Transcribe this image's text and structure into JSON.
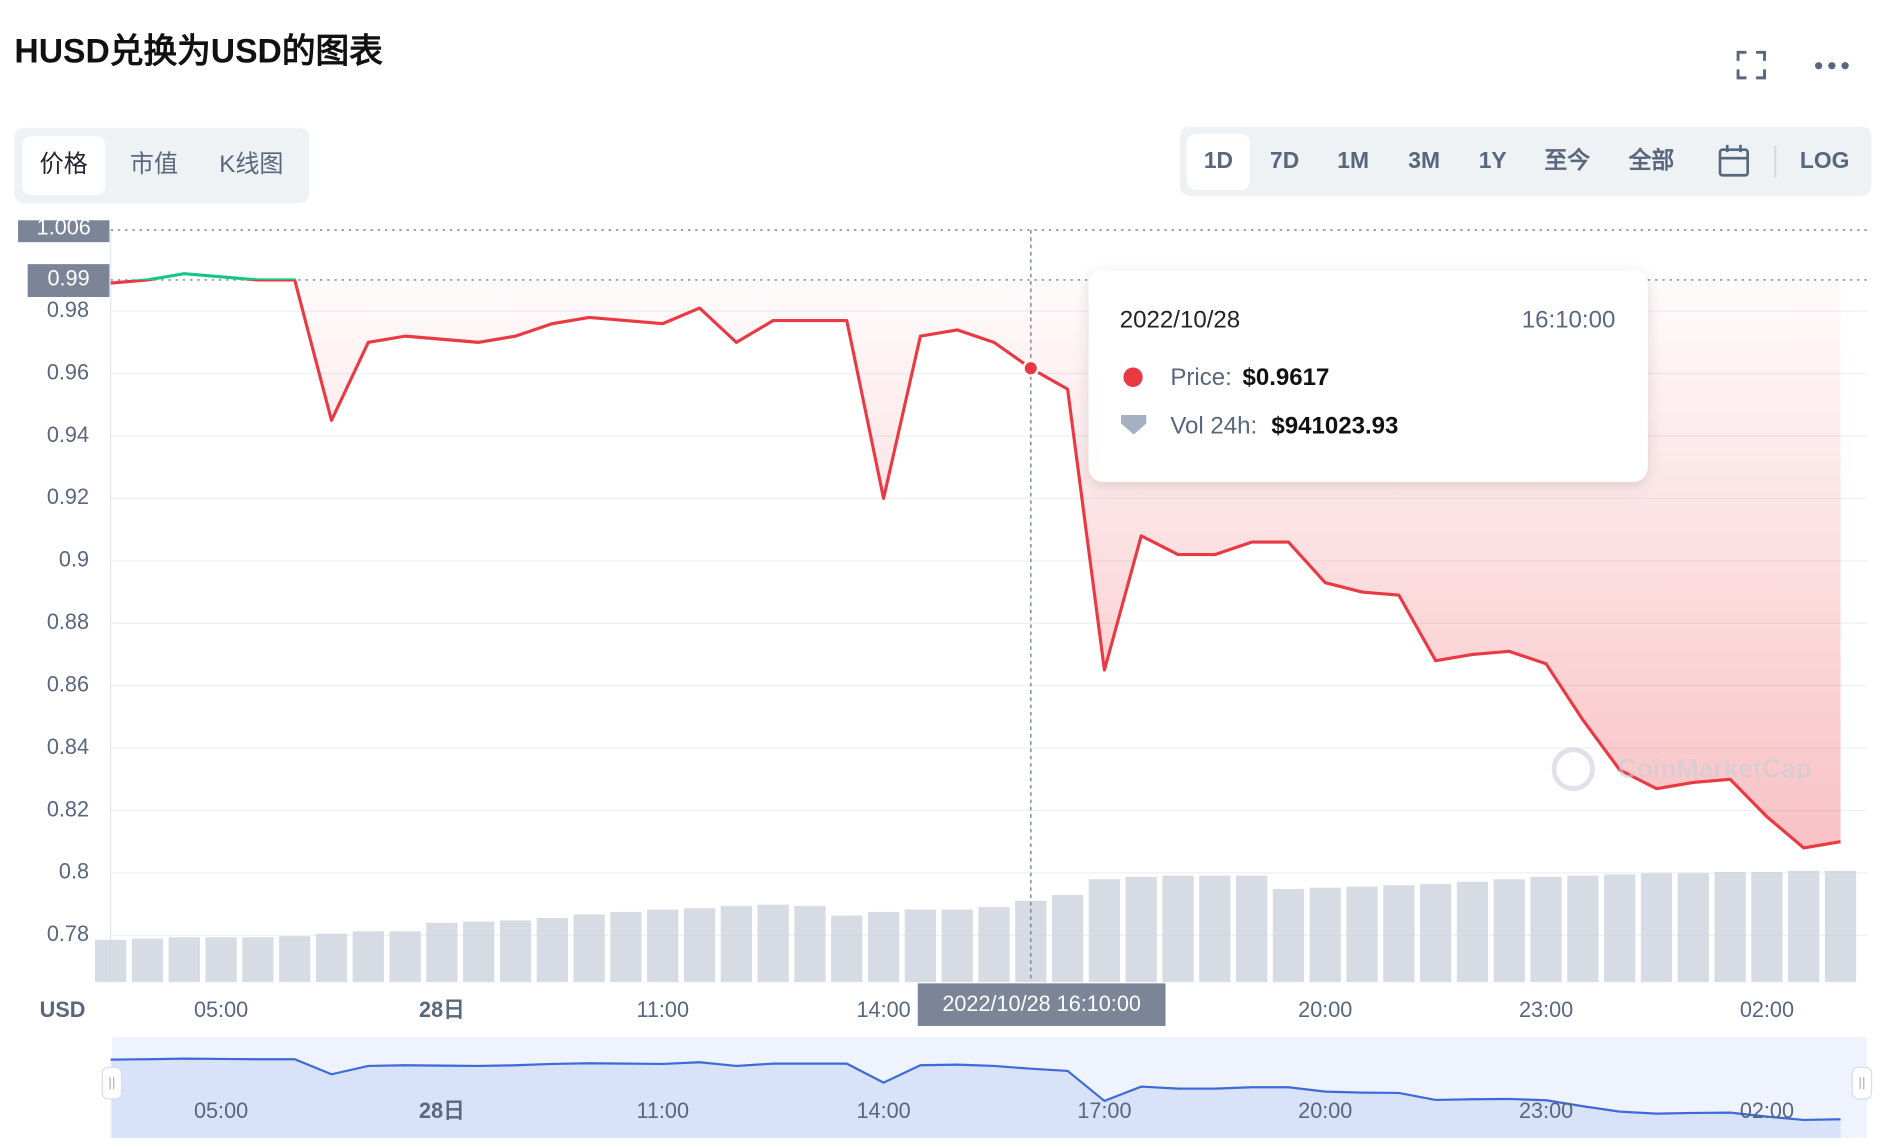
{
  "header": {
    "title": "HUSD兑换为USD的图表"
  },
  "tabs": {
    "items": [
      "价格",
      "市值",
      "K线图"
    ],
    "active": 0
  },
  "ranges": {
    "items": [
      "1D",
      "7D",
      "1M",
      "3M",
      "1Y",
      "至今",
      "全部"
    ],
    "active": 0,
    "log": "LOG"
  },
  "chart_data": {
    "type": "line",
    "categories": [
      null,
      null,
      null,
      "05:00",
      null,
      null,
      null,
      null,
      null,
      "28日",
      null,
      null,
      null,
      null,
      null,
      "11:00",
      null,
      null,
      null,
      null,
      null,
      "14:00",
      null,
      null,
      null,
      null,
      null,
      "17:00",
      null,
      null,
      null,
      null,
      null,
      "20:00",
      null,
      null,
      null,
      null,
      null,
      "23:00",
      null,
      null,
      null,
      null,
      null,
      "02:00",
      null,
      null
    ],
    "series": [
      {
        "color": "#ea3943",
        "up_color": "#16c784",
        "values": [
          0.989,
          0.99,
          0.992,
          0.991,
          0.99,
          0.99,
          0.945,
          0.97,
          0.972,
          0.971,
          0.97,
          0.972,
          0.976,
          0.978,
          0.977,
          0.976,
          0.981,
          0.97,
          0.977,
          0.977,
          0.977,
          0.92,
          0.972,
          0.974,
          0.97,
          0.9617,
          0.955,
          0.865,
          0.908,
          0.902,
          0.902,
          0.906,
          0.906,
          0.893,
          0.89,
          0.889,
          0.868,
          0.87,
          0.871,
          0.867,
          0.849,
          0.833,
          0.827,
          0.829,
          0.83,
          0.818,
          0.808,
          0.81
        ]
      },
      {
        "color": "#cfd5df",
        "axis": "y2",
        "values": [
          490000,
          504000,
          518000,
          518000,
          518000,
          532000,
          560000,
          588000,
          588000,
          686000,
          700000,
          714000,
          742000,
          784000,
          812000,
          840000,
          854000,
          882000,
          896000,
          882000,
          770000,
          812000,
          840000,
          840000,
          868000,
          941023.93,
          1008000,
          1190000,
          1218000,
          1232000,
          1232000,
          1232000,
          1078000,
          1092000,
          1106000,
          1120000,
          1134000,
          1162000,
          1190000,
          1218000,
          1232000,
          1246000,
          1260000,
          1260000,
          1274000,
          1274000,
          1288000,
          1288000
        ]
      }
    ],
    "ylim": [
      0.765,
      1.006
    ],
    "yticks": [
      0.78,
      0.8,
      0.82,
      0.84,
      0.86,
      0.88,
      0.9,
      0.92,
      0.94,
      0.96,
      0.98
    ],
    "y2lim": [
      0,
      8700000
    ],
    "reference_lines": [
      1.006,
      0.99
    ],
    "grid": true,
    "x_unit_label": "USD",
    "watermark": "CoinMarketCap",
    "navigator_color": "#3d6ad6"
  },
  "tooltip": {
    "date": "2022/10/28",
    "time": "16:10:00",
    "price_label": "Price:",
    "price_value": "$0.9617",
    "vol_label": "Vol 24h:",
    "vol_value": "$941023.93",
    "crosshair_label": "2022/10/28 16:10:00"
  }
}
